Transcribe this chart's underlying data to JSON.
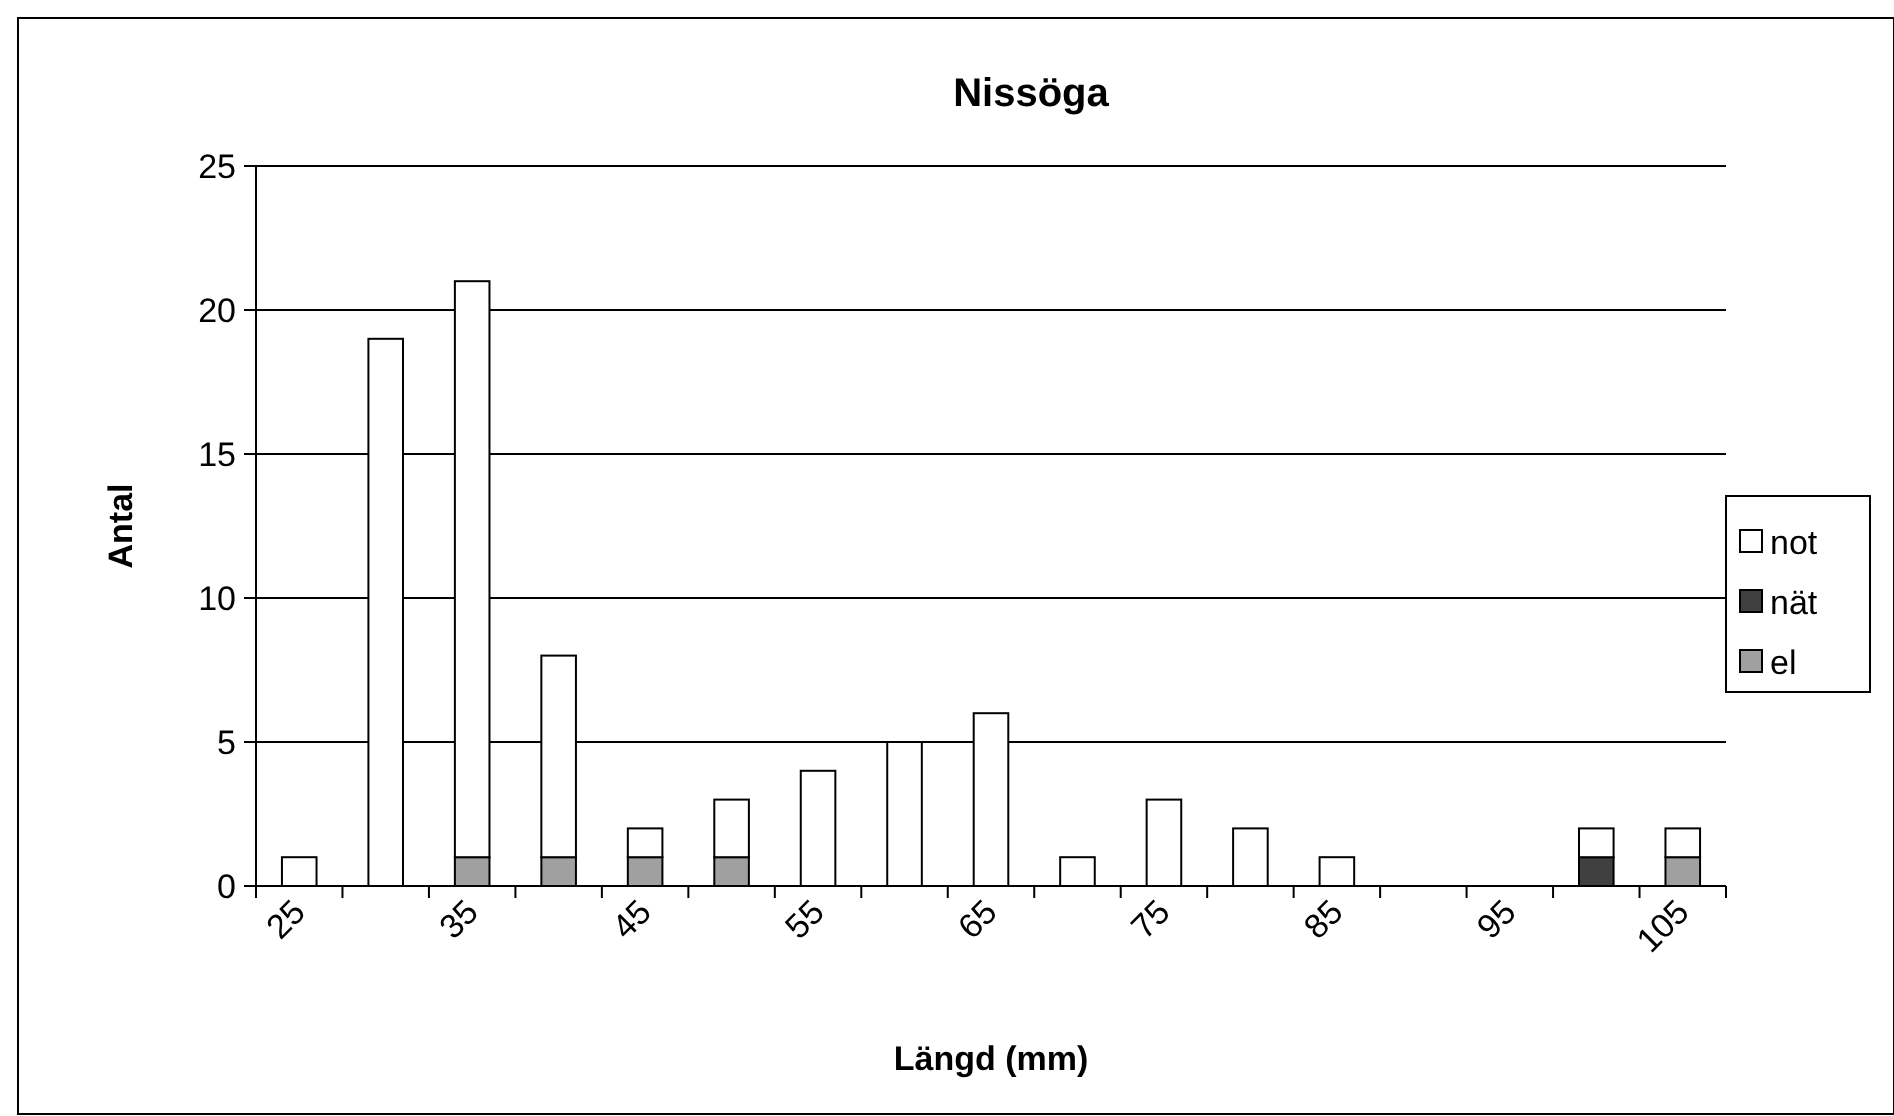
{
  "chart_data": {
    "type": "bar",
    "title": "Nissöga",
    "xlabel": "Längd (mm)",
    "ylabel": "Antal",
    "stacked": true,
    "legend": "right",
    "grid": "y",
    "categories": [
      "25",
      null,
      "35",
      null,
      "45",
      null,
      "55",
      null,
      "65",
      null,
      "75",
      null,
      "85",
      null,
      "95",
      null,
      "105"
    ],
    "series": [
      {
        "name": "el",
        "color": "#a0a0a0",
        "values": [
          0,
          0,
          1,
          1,
          1,
          1,
          0,
          0,
          0,
          0,
          0,
          0,
          0,
          0,
          0,
          0,
          1
        ]
      },
      {
        "name": "nät",
        "color": "#404040",
        "values": [
          0,
          0,
          0,
          0,
          0,
          0,
          0,
          0,
          0,
          0,
          0,
          0,
          0,
          0,
          0,
          1,
          0
        ]
      },
      {
        "name": "not",
        "color": "#ffffff",
        "values": [
          1,
          19,
          20,
          7,
          1,
          2,
          4,
          5,
          6,
          1,
          3,
          2,
          1,
          0,
          0,
          1,
          1
        ]
      }
    ],
    "ylim": [
      0,
      25
    ],
    "yticks": [
      0,
      5,
      10,
      15,
      20,
      25
    ]
  }
}
